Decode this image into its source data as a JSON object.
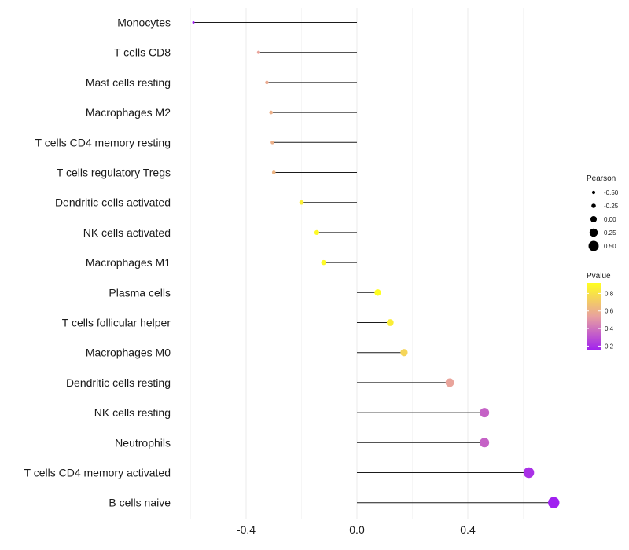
{
  "chart_data": {
    "type": "lollipop",
    "title": "",
    "xlabel": "",
    "ylabel": "",
    "xlim": [
      -0.6,
      0.72
    ],
    "xticks": [
      -0.4,
      0.0,
      0.4
    ],
    "xtick_labels": [
      "-0.4",
      "0.0",
      "0.4"
    ],
    "grid": true,
    "categories": [
      "Monocytes",
      "T cells CD8",
      "Mast cells resting",
      "Macrophages M2",
      "T cells CD4 memory resting",
      "T cells regulatory  Tregs ",
      "Dendritic cells activated",
      "NK cells activated",
      "Macrophages M1",
      "Plasma cells",
      "T cells follicular helper",
      "Macrophages M0",
      "Dendritic cells resting",
      "NK cells resting",
      "Neutrophils",
      "T cells CD4 memory activated",
      "B cells naive"
    ],
    "values": [
      -0.59,
      -0.355,
      -0.325,
      -0.31,
      -0.305,
      -0.3,
      -0.2,
      -0.145,
      -0.12,
      0.075,
      0.12,
      0.17,
      0.335,
      0.46,
      0.46,
      0.62,
      0.71
    ],
    "pvalues": [
      0.15,
      0.55,
      0.58,
      0.6,
      0.6,
      0.62,
      0.85,
      0.9,
      0.9,
      0.95,
      0.85,
      0.75,
      0.55,
      0.35,
      0.35,
      0.2,
      0.15
    ],
    "legend_size": {
      "title": "Pearson",
      "labels": [
        "-0.50",
        "-0.25",
        "0.00",
        "0.25",
        "0.50"
      ],
      "values": [
        -0.5,
        -0.25,
        0.0,
        0.25,
        0.5
      ]
    },
    "legend_color": {
      "title": "Pvalue",
      "labels": [
        "0.8",
        "0.6",
        "0.4",
        "0.2"
      ],
      "values": [
        0.8,
        0.6,
        0.4,
        0.2
      ],
      "range": [
        0.15,
        0.92
      ],
      "low_color": "#a020f0",
      "mid_color": "#e8a0a0",
      "high_color": "#ffff20"
    },
    "legend_position": "right"
  }
}
